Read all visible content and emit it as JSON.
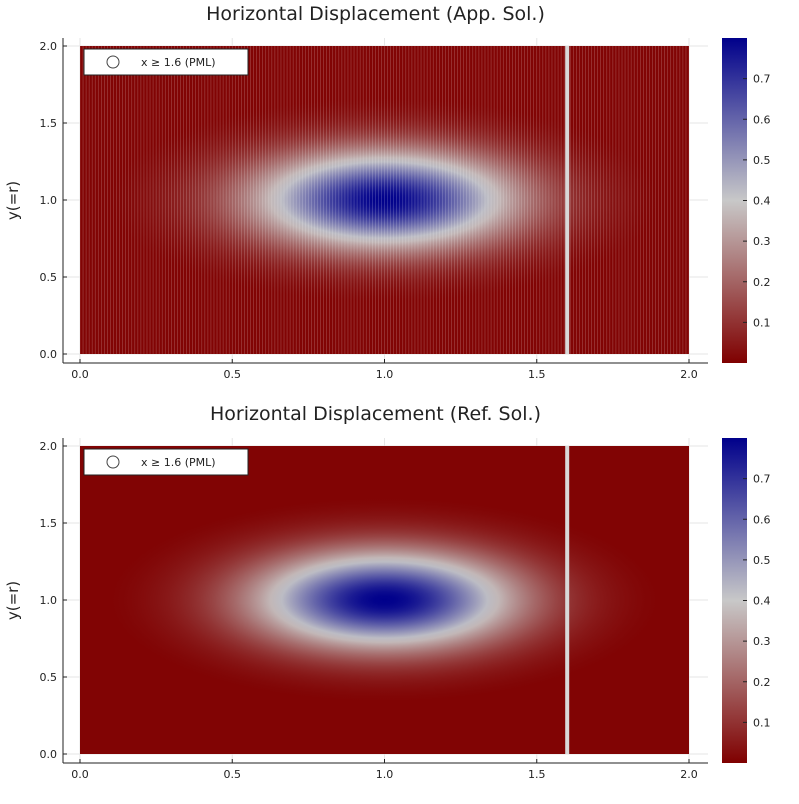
{
  "chart_data": [
    {
      "type": "heatmap",
      "title": "Horizontal Displacement (App. Sol.)",
      "xlabel": "",
      "ylabel": "y(=r)",
      "xlim": [
        0.0,
        2.0
      ],
      "ylim": [
        0.0,
        2.0
      ],
      "x_ticks": [
        "0.0",
        "0.5",
        "1.0",
        "1.5",
        "2.0"
      ],
      "y_ticks": [
        "0.0",
        "0.5",
        "1.0",
        "1.5",
        "2.0"
      ],
      "field": {
        "peak_value": 0.8,
        "center": [
          1.0,
          1.0
        ],
        "sigma_x": 0.3,
        "sigma_y": 0.22
      },
      "colorbar": {
        "min": 0.0,
        "max": 0.8,
        "ticks": [
          "0.1",
          "0.2",
          "0.3",
          "0.4",
          "0.5",
          "0.6",
          "0.7"
        ],
        "colors": [
          "#7f0000",
          "#c8c8c8",
          "#00008b"
        ]
      },
      "marker_line": {
        "x": 1.6
      },
      "legend": {
        "label": "x ≥ 1.6 (PML)",
        "position": "top-left"
      },
      "grid": true
    },
    {
      "type": "heatmap",
      "title": "Horizontal Displacement (Ref. Sol.)",
      "xlabel": "",
      "ylabel": "y(=r)",
      "xlim": [
        0.0,
        2.0
      ],
      "ylim": [
        0.0,
        2.0
      ],
      "x_ticks": [
        "0.0",
        "0.5",
        "1.0",
        "1.5",
        "2.0"
      ],
      "y_ticks": [
        "0.0",
        "0.5",
        "1.0",
        "1.5",
        "2.0"
      ],
      "field": {
        "peak_value": 0.8,
        "center": [
          1.0,
          1.0
        ],
        "sigma_x": 0.3,
        "sigma_y": 0.22
      },
      "colorbar": {
        "min": 0.0,
        "max": 0.8,
        "ticks": [
          "0.1",
          "0.2",
          "0.3",
          "0.4",
          "0.5",
          "0.6",
          "0.7"
        ],
        "colors": [
          "#7f0000",
          "#c8c8c8",
          "#00008b"
        ]
      },
      "marker_line": {
        "x": 1.6
      },
      "legend": {
        "label": "x ≥ 1.6 (PML)",
        "position": "top-left"
      },
      "grid": true
    }
  ]
}
